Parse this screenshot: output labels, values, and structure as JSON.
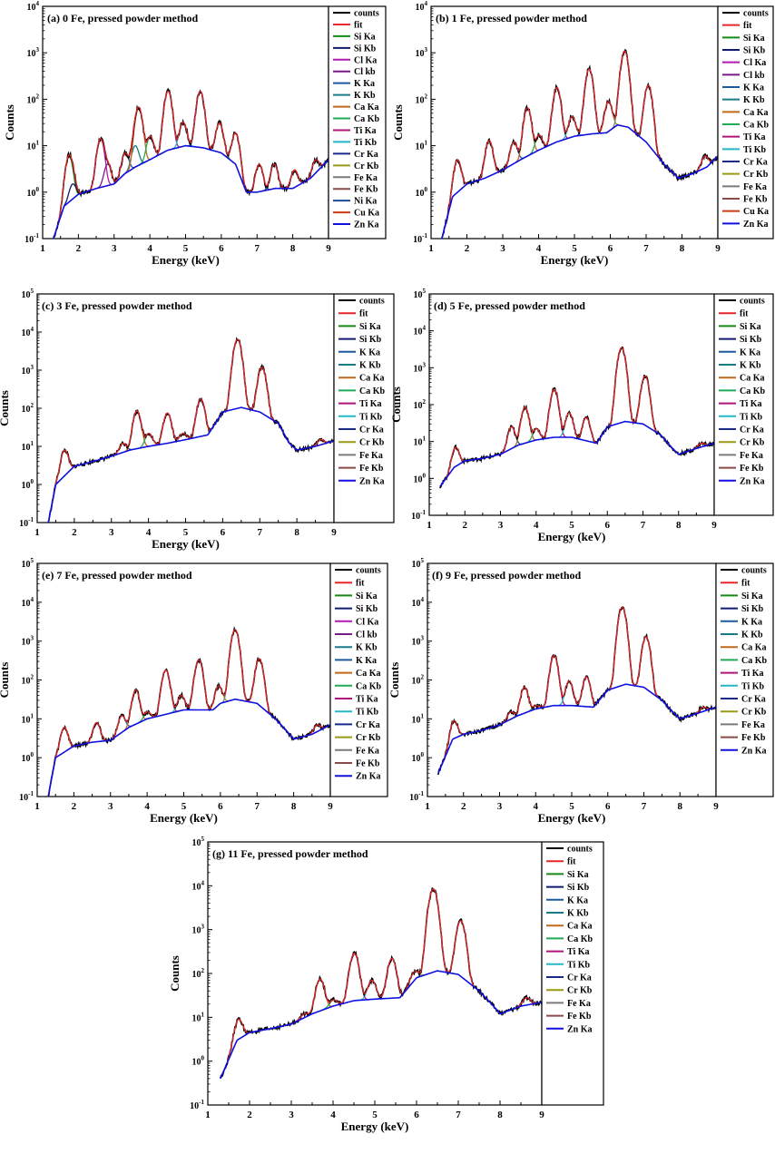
{
  "figure": {
    "colors": {
      "counts": "#000000",
      "fit": "#e8262b",
      "Si Ka": "#158a15",
      "Si Kb": "#121a6e",
      "Cl Ka": "#b21ab2",
      "Cl kb": "#7a1a8a",
      "K Ka": "#1e5aa0",
      "K Kb": "#1a7a8a",
      "Ca Ka": "#c06a1a",
      "Ca Kb": "#22aa55",
      "Ti Ka": "#b0157a",
      "Ti Kb": "#22b8c8",
      "Cr Ka": "#1a2a8a",
      "Cr Kb": "#9a9a15",
      "Fe Ka": "#7a7a7a",
      "Fe Kb": "#8a4a4a",
      "Ni Ka": "#1a4a9a",
      "Cu Ka": "#cc3a10",
      "Zn Ka": "#1010e0"
    }
  },
  "chart_data": [
    {
      "type": "line",
      "panel": "a",
      "title": "(a) 0 Fe, pressed powder method",
      "xlabel": "Energy (keV)",
      "ylabel": "Counts",
      "xlim": [
        1,
        9
      ],
      "ylim_exp": [
        -1,
        4
      ],
      "y_scale": "log",
      "x_ticks": [
        "1",
        "2",
        "3",
        "4",
        "5",
        "6",
        "7",
        "8",
        "9"
      ],
      "legend": [
        "counts",
        "fit",
        "Si Ka",
        "Si Kb",
        "Cl Ka",
        "Cl kb",
        "K Ka",
        "K Kb",
        "Ca Ka",
        "Ca Kb",
        "Ti Ka",
        "Ti Kb",
        "Cr Ka",
        "Cr Kb",
        "Fe Ka",
        "Fe Kb",
        "Ni Ka",
        "Cu Ka",
        "Zn Ka"
      ],
      "background": [
        [
          1.3,
          0.1
        ],
        [
          1.6,
          0.5
        ],
        [
          2.0,
          0.9
        ],
        [
          2.5,
          1.2
        ],
        [
          3.0,
          1.5
        ],
        [
          3.3,
          2.5
        ],
        [
          3.6,
          3.5
        ],
        [
          4.0,
          5
        ],
        [
          4.5,
          8
        ],
        [
          5.0,
          10
        ],
        [
          5.5,
          9
        ],
        [
          6.0,
          7
        ],
        [
          6.4,
          4
        ],
        [
          6.7,
          1.0
        ],
        [
          7.0,
          1.0
        ],
        [
          7.5,
          1.2
        ],
        [
          8.0,
          1.2
        ],
        [
          8.5,
          2.0
        ],
        [
          9.0,
          5.0
        ]
      ],
      "peaks": [
        {
          "line": "Si Ka",
          "x": 1.74,
          "y": 6
        },
        {
          "line": "Si Kb",
          "x": 1.84,
          "y": 1.5
        },
        {
          "line": "Cl Ka",
          "x": 2.62,
          "y": 14
        },
        {
          "line": "Cl kb",
          "x": 2.82,
          "y": 4
        },
        {
          "line": "K Ka",
          "x": 3.31,
          "y": 7
        },
        {
          "line": "K Kb",
          "x": 3.59,
          "y": 10
        },
        {
          "line": "Ca Ka",
          "x": 3.69,
          "y": 65
        },
        {
          "line": "Ca Kb",
          "x": 4.01,
          "y": 16
        },
        {
          "line": "Ti Ka",
          "x": 4.51,
          "y": 150
        },
        {
          "line": "Ti Kb",
          "x": 4.93,
          "y": 32
        },
        {
          "line": "Cr Ka",
          "x": 5.41,
          "y": 150
        },
        {
          "line": "Cr Kb",
          "x": 5.95,
          "y": 31
        },
        {
          "line": "Fe Ka",
          "x": 6.4,
          "y": 19
        },
        {
          "line": "Fe Kb",
          "x": 7.06,
          "y": 4
        },
        {
          "line": "Ni Ka",
          "x": 7.48,
          "y": 4
        },
        {
          "line": "Cu Ka",
          "x": 8.05,
          "y": 3
        },
        {
          "line": "Zn Ka",
          "x": 8.64,
          "y": 5
        }
      ]
    },
    {
      "type": "line",
      "panel": "b",
      "title": "(b) 1 Fe, pressed powder method",
      "xlabel": "Energy (keV)",
      "ylabel": "Counts",
      "xlim": [
        1,
        9
      ],
      "ylim_exp": [
        -1,
        4
      ],
      "y_scale": "log",
      "x_ticks": [
        "1",
        "2",
        "3",
        "4",
        "5",
        "6",
        "7",
        "8",
        "9"
      ],
      "legend": [
        "counts",
        "fit",
        "Si Ka",
        "Si Kb",
        "Cl Ka",
        "Cl kb",
        "K Ka",
        "K Kb",
        "Ca Ka",
        "Ca Kb",
        "Ti Ka",
        "Ti Kb",
        "Cr Ka",
        "Cr Kb",
        "Fe Ka",
        "Fe Kb",
        "Cu Ka",
        "Zn Ka"
      ],
      "background": [
        [
          1.3,
          0.1
        ],
        [
          1.6,
          0.8
        ],
        [
          2.0,
          1.5
        ],
        [
          2.5,
          2.0
        ],
        [
          3.0,
          3.0
        ],
        [
          3.5,
          5
        ],
        [
          4.0,
          8
        ],
        [
          4.5,
          12
        ],
        [
          5.0,
          16
        ],
        [
          5.5,
          18
        ],
        [
          5.9,
          19
        ],
        [
          6.2,
          28
        ],
        [
          6.5,
          25
        ],
        [
          7.0,
          12
        ],
        [
          7.5,
          4
        ],
        [
          7.9,
          2.0
        ],
        [
          8.3,
          2.5
        ],
        [
          8.7,
          3.5
        ],
        [
          9.0,
          6
        ]
      ],
      "peaks": [
        {
          "line": "Si Ka",
          "x": 1.74,
          "y": 5
        },
        {
          "line": "Cl Ka",
          "x": 2.62,
          "y": 13
        },
        {
          "line": "K Ka",
          "x": 3.31,
          "y": 12
        },
        {
          "line": "Ca Ka",
          "x": 3.69,
          "y": 65
        },
        {
          "line": "Ca Kb",
          "x": 4.01,
          "y": 17
        },
        {
          "line": "Ti Ka",
          "x": 4.51,
          "y": 180
        },
        {
          "line": "Ti Kb",
          "x": 4.93,
          "y": 42
        },
        {
          "line": "Cr Ka",
          "x": 5.41,
          "y": 450
        },
        {
          "line": "Cr Kb",
          "x": 5.95,
          "y": 90
        },
        {
          "line": "Fe Ka",
          "x": 6.4,
          "y": 1100
        },
        {
          "line": "Fe Kb",
          "x": 7.06,
          "y": 200
        },
        {
          "line": "Zn Ka",
          "x": 8.64,
          "y": 6
        }
      ]
    },
    {
      "type": "line",
      "panel": "c",
      "title": "(c) 3 Fe, pressed powder method",
      "xlabel": "Energy (keV)",
      "ylabel": "Counts",
      "xlim": [
        1,
        9
      ],
      "ylim_exp": [
        -1,
        5
      ],
      "y_scale": "log",
      "x_ticks": [
        "1",
        "2",
        "3",
        "4",
        "5",
        "6",
        "7",
        "8",
        "9"
      ],
      "legend": [
        "counts",
        "fit",
        "Si Ka",
        "Si Kb",
        "K Ka",
        "K Kb",
        "Ca Ka",
        "Ca Kb",
        "Ti Ka",
        "Ti Kb",
        "Cr Ka",
        "Cr Kb",
        "Fe Ka",
        "Fe Kb",
        "Zn Ka"
      ],
      "background": [
        [
          1.3,
          0.1
        ],
        [
          1.5,
          1.0
        ],
        [
          2.0,
          3
        ],
        [
          2.5,
          4
        ],
        [
          3.0,
          5.5
        ],
        [
          3.5,
          8
        ],
        [
          4.0,
          10
        ],
        [
          4.5,
          12
        ],
        [
          5.0,
          15
        ],
        [
          5.6,
          20
        ],
        [
          6.0,
          80
        ],
        [
          6.5,
          105
        ],
        [
          7.0,
          80
        ],
        [
          7.5,
          40
        ],
        [
          7.8,
          12
        ],
        [
          8.0,
          8
        ],
        [
          8.5,
          10
        ],
        [
          9.0,
          14
        ]
      ],
      "peaks": [
        {
          "line": "Si Ka",
          "x": 1.74,
          "y": 8
        },
        {
          "line": "K Ka",
          "x": 3.31,
          "y": 12
        },
        {
          "line": "Ca Ka",
          "x": 3.69,
          "y": 85
        },
        {
          "line": "Ca Kb",
          "x": 4.01,
          "y": 22
        },
        {
          "line": "Ti Ka",
          "x": 4.51,
          "y": 75
        },
        {
          "line": "Ti Kb",
          "x": 4.93,
          "y": 22
        },
        {
          "line": "Cr Ka",
          "x": 5.41,
          "y": 175
        },
        {
          "line": "Fe Ka",
          "x": 6.4,
          "y": 6500
        },
        {
          "line": "Fe Kb",
          "x": 7.06,
          "y": 1200
        },
        {
          "line": "Zn Ka",
          "x": 8.64,
          "y": 15
        }
      ]
    },
    {
      "type": "line",
      "panel": "d",
      "title": "(d) 5 Fe, pressed powder method",
      "xlabel": "Energy (keV)",
      "ylabel": "Counts",
      "xlim": [
        1,
        9
      ],
      "ylim_exp": [
        -1,
        5
      ],
      "y_scale": "log",
      "x_ticks": [
        "1",
        "2",
        "3",
        "4",
        "5",
        "6",
        "7",
        "8",
        "9"
      ],
      "legend": [
        "counts",
        "fit",
        "Si Ka",
        "Si Kb",
        "K Ka",
        "K Kb",
        "Ca Ka",
        "Ca Kb",
        "Ti Ka",
        "Ti Kb",
        "Cr Ka",
        "Cr Kb",
        "Fe Ka",
        "Fe Kb",
        "Zn Ka"
      ],
      "background": [
        [
          1.3,
          0.6
        ],
        [
          1.7,
          2.0
        ],
        [
          2.0,
          3
        ],
        [
          2.5,
          3.5
        ],
        [
          3.0,
          4.5
        ],
        [
          3.5,
          8
        ],
        [
          4.0,
          11
        ],
        [
          4.5,
          13
        ],
        [
          5.0,
          13
        ],
        [
          5.5,
          10
        ],
        [
          5.7,
          9
        ],
        [
          6.0,
          25
        ],
        [
          6.5,
          35
        ],
        [
          7.0,
          30
        ],
        [
          7.5,
          15
        ],
        [
          7.8,
          7
        ],
        [
          8.0,
          4.5
        ],
        [
          8.5,
          6.5
        ],
        [
          9.0,
          9
        ]
      ],
      "peaks": [
        {
          "line": "Si Ka",
          "x": 1.74,
          "y": 7
        },
        {
          "line": "K Ka",
          "x": 3.31,
          "y": 25
        },
        {
          "line": "Ca Ka",
          "x": 3.69,
          "y": 85
        },
        {
          "line": "Ca Kb",
          "x": 4.01,
          "y": 22
        },
        {
          "line": "Ti Ka",
          "x": 4.51,
          "y": 260
        },
        {
          "line": "Ti Kb",
          "x": 4.93,
          "y": 60
        },
        {
          "line": "Cr Ka",
          "x": 5.41,
          "y": 45
        },
        {
          "line": "Fe Ka",
          "x": 6.4,
          "y": 3500
        },
        {
          "line": "Fe Kb",
          "x": 7.06,
          "y": 600
        },
        {
          "line": "Zn Ka",
          "x": 8.64,
          "y": 9
        }
      ]
    },
    {
      "type": "line",
      "panel": "e",
      "title": "(e) 7 Fe, pressed powder method",
      "xlabel": "Energy (keV)",
      "ylabel": "Counts",
      "xlim": [
        1,
        9
      ],
      "ylim_exp": [
        -1,
        5
      ],
      "y_scale": "log",
      "x_ticks": [
        "1",
        "2",
        "3",
        "4",
        "5",
        "6",
        "7",
        "8",
        "9"
      ],
      "legend": [
        "counts",
        "fit",
        "Si Ka",
        "Si Kb",
        "Cl Ka",
        "Cl kb",
        "K Kb",
        "K Ka",
        "Ca Ka",
        "Ca Kb",
        "Ti Ka",
        "Ti Kb",
        "Cr Ka",
        "Cr Kb",
        "Fe Ka",
        "Fe Kb",
        "Zn Ka"
      ],
      "background": [
        [
          1.3,
          0.1
        ],
        [
          1.5,
          1.0
        ],
        [
          2.0,
          2.0
        ],
        [
          2.5,
          2.5
        ],
        [
          3.0,
          2.8
        ],
        [
          3.5,
          6
        ],
        [
          4.0,
          10
        ],
        [
          4.5,
          13
        ],
        [
          5.0,
          17
        ],
        [
          5.5,
          17
        ],
        [
          5.8,
          17
        ],
        [
          6.0,
          25
        ],
        [
          6.4,
          32
        ],
        [
          7.0,
          25
        ],
        [
          7.5,
          10
        ],
        [
          7.8,
          5
        ],
        [
          8.0,
          3
        ],
        [
          8.5,
          4
        ],
        [
          9.0,
          7
        ]
      ],
      "peaks": [
        {
          "line": "Si Ka",
          "x": 1.74,
          "y": 6
        },
        {
          "line": "Cl Ka",
          "x": 2.62,
          "y": 8
        },
        {
          "line": "K Ka",
          "x": 3.31,
          "y": 12
        },
        {
          "line": "Ca Ka",
          "x": 3.69,
          "y": 55
        },
        {
          "line": "Ca Kb",
          "x": 4.01,
          "y": 15
        },
        {
          "line": "Ti Ka",
          "x": 4.51,
          "y": 180
        },
        {
          "line": "Ti Kb",
          "x": 4.93,
          "y": 40
        },
        {
          "line": "Cr Ka",
          "x": 5.41,
          "y": 330
        },
        {
          "line": "Cr Kb",
          "x": 5.95,
          "y": 70
        },
        {
          "line": "Fe Ka",
          "x": 6.4,
          "y": 2000
        },
        {
          "line": "Fe Kb",
          "x": 7.06,
          "y": 350
        },
        {
          "line": "Zn Ka",
          "x": 8.64,
          "y": 7
        }
      ]
    },
    {
      "type": "line",
      "panel": "f",
      "title": "(f) 9 Fe, pressed powder method",
      "xlabel": "Energy (keV)",
      "ylabel": "Counts",
      "xlim": [
        1,
        9
      ],
      "ylim_exp": [
        -1,
        5
      ],
      "y_scale": "log",
      "x_ticks": [
        "1",
        "2",
        "3",
        "4",
        "5",
        "6",
        "7",
        "8",
        "9"
      ],
      "legend": [
        "counts",
        "fit",
        "Si Ka",
        "Si Kb",
        "K Ka",
        "K Kb",
        "Ca Ka",
        "Ca Kb",
        "Ti Ka",
        "Ti Kb",
        "Cr Ka",
        "Cr Kb",
        "Fe Ka",
        "Fe Kb",
        "Zn Ka"
      ],
      "background": [
        [
          1.3,
          0.4
        ],
        [
          1.7,
          3
        ],
        [
          2.0,
          4
        ],
        [
          2.5,
          5
        ],
        [
          3.0,
          7
        ],
        [
          3.5,
          12
        ],
        [
          4.0,
          18
        ],
        [
          4.5,
          22
        ],
        [
          5.0,
          22
        ],
        [
          5.6,
          20
        ],
        [
          6.0,
          55
        ],
        [
          6.5,
          78
        ],
        [
          7.0,
          65
        ],
        [
          7.5,
          30
        ],
        [
          7.8,
          15
        ],
        [
          8.0,
          10
        ],
        [
          8.5,
          14
        ],
        [
          9.0,
          20
        ]
      ],
      "peaks": [
        {
          "line": "Si Ka",
          "x": 1.74,
          "y": 9
        },
        {
          "line": "K Ka",
          "x": 3.31,
          "y": 15
        },
        {
          "line": "Ca Ka",
          "x": 3.69,
          "y": 65
        },
        {
          "line": "Ca Kb",
          "x": 4.01,
          "y": 22
        },
        {
          "line": "Ti Ka",
          "x": 4.51,
          "y": 430
        },
        {
          "line": "Ti Kb",
          "x": 4.93,
          "y": 95
        },
        {
          "line": "Cr Ka",
          "x": 5.41,
          "y": 120
        },
        {
          "line": "Cr Kb",
          "x": 5.95,
          "y": 40
        },
        {
          "line": "Fe Ka",
          "x": 6.4,
          "y": 7500
        },
        {
          "line": "Fe Kb",
          "x": 7.06,
          "y": 1300
        },
        {
          "line": "Zn Ka",
          "x": 8.64,
          "y": 20
        }
      ]
    },
    {
      "type": "line",
      "panel": "g",
      "title": "(g) 11 Fe, pressed powder method",
      "xlabel": "Energy (keV)",
      "ylabel": "Counts",
      "xlim": [
        1,
        9
      ],
      "ylim_exp": [
        -1,
        5
      ],
      "y_scale": "log",
      "x_ticks": [
        "1",
        "2",
        "3",
        "4",
        "5",
        "6",
        "7",
        "8",
        "9"
      ],
      "legend": [
        "counts",
        "fit",
        "Si Ka",
        "Si Kb",
        "K Ka",
        "K Kb",
        "Ca Ka",
        "Ca Kb",
        "Ti Ka",
        "Ti Kb",
        "Cr Ka",
        "Cr Kb",
        "Fe Ka",
        "Fe Kb",
        "Zn Ka"
      ],
      "background": [
        [
          1.3,
          0.4
        ],
        [
          1.7,
          3
        ],
        [
          2.0,
          4.5
        ],
        [
          2.5,
          5.5
        ],
        [
          3.0,
          7
        ],
        [
          3.5,
          12
        ],
        [
          4.0,
          18
        ],
        [
          4.5,
          24
        ],
        [
          5.0,
          26
        ],
        [
          5.6,
          28
        ],
        [
          6.0,
          80
        ],
        [
          6.5,
          115
        ],
        [
          7.0,
          95
        ],
        [
          7.5,
          40
        ],
        [
          7.8,
          20
        ],
        [
          8.0,
          12
        ],
        [
          8.5,
          18
        ],
        [
          9.0,
          22
        ]
      ],
      "peaks": [
        {
          "line": "Si Ka",
          "x": 1.74,
          "y": 9
        },
        {
          "line": "K Ka",
          "x": 3.31,
          "y": 12
        },
        {
          "line": "Ca Ka",
          "x": 3.69,
          "y": 75
        },
        {
          "line": "Ca Kb",
          "x": 4.01,
          "y": 25
        },
        {
          "line": "Ti Ka",
          "x": 4.51,
          "y": 290
        },
        {
          "line": "Ti Kb",
          "x": 4.93,
          "y": 70
        },
        {
          "line": "Cr Ka",
          "x": 5.41,
          "y": 220
        },
        {
          "line": "Cr Kb",
          "x": 5.95,
          "y": 110
        },
        {
          "line": "Fe Ka",
          "x": 6.4,
          "y": 8500
        },
        {
          "line": "Fe Kb",
          "x": 7.06,
          "y": 1600
        },
        {
          "line": "Zn Ka",
          "x": 8.64,
          "y": 28
        }
      ]
    }
  ]
}
